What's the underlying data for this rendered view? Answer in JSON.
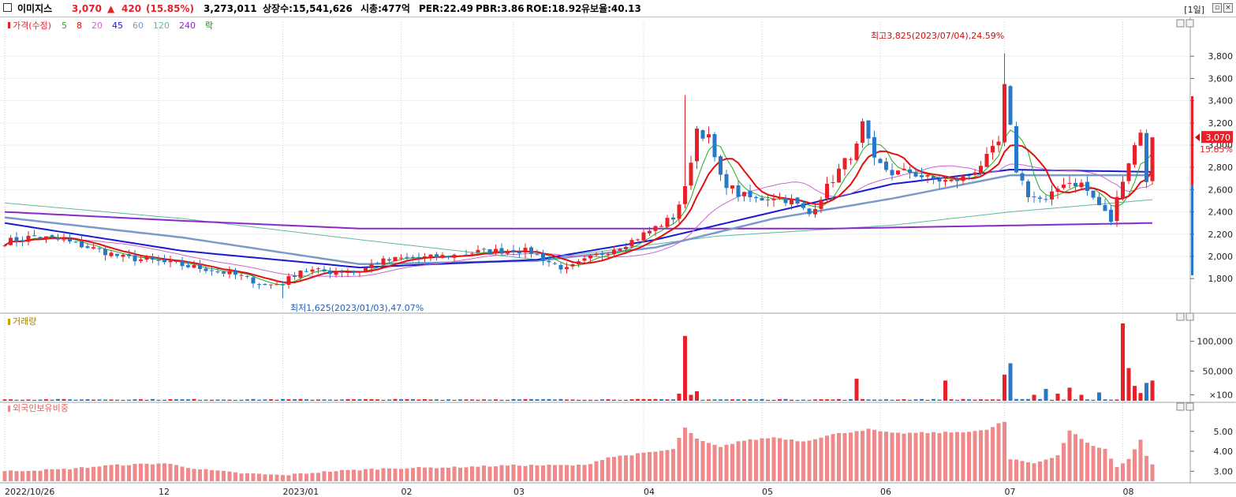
{
  "header": {
    "name": "이미지스",
    "price": "3,070",
    "change_arrow": "▲",
    "change": "420",
    "change_pct": "(15.85%)",
    "volume": "3,273,011",
    "shares": "상장수:15,541,626",
    "mcap": "시총:477억",
    "per": "PER:22.49",
    "pbr": "PBR:3.86",
    "roe": "ROE:18.92",
    "float": "유보율:40.13",
    "period": "[1일]"
  },
  "colors": {
    "up": "#e8202a",
    "down": "#2878c8",
    "ma5": "#1fae1f",
    "ma8": "#e01010",
    "ma20": "#cc66cc",
    "ma45": "#1a1ad0",
    "ma60": "#7a9ac8",
    "ma120": "#5fb8a0",
    "ma240": "#8a2ac8",
    "foreign": "#f08a8a"
  },
  "chart_data": {
    "type": "candlestick",
    "price_panel": {
      "legend": [
        {
          "label": "가격(수정)",
          "color": "#e8202a"
        },
        {
          "label": "5",
          "color": "#1fae1f"
        },
        {
          "label": "8",
          "color": "#e01010"
        },
        {
          "label": "20",
          "color": "#cc66cc"
        },
        {
          "label": "45",
          "color": "#1a1ad0"
        },
        {
          "label": "60",
          "color": "#7a9ac8"
        },
        {
          "label": "120",
          "color": "#5fb8a0"
        },
        {
          "label": "240",
          "color": "#8a2ac8"
        },
        {
          "label": "락",
          "color": "#0a8a0a"
        }
      ],
      "y_ticks": [
        "3,800",
        "3,600",
        "3,400",
        "3,200",
        "3,000",
        "2,800",
        "2,600",
        "2,400",
        "2,200",
        "2,000",
        "1,800"
      ],
      "y_tick_values": [
        3800,
        3600,
        3400,
        3200,
        3000,
        2800,
        2600,
        2400,
        2200,
        2000,
        1800
      ],
      "ylim": [
        1560,
        4050
      ],
      "high_annotation": "최고3,825(2023/07/04),24.59%",
      "low_annotation": "최저1,625(2023/01/03),47.07%",
      "last_price_label": "3,070",
      "last_pct_label": "15.85%",
      "last_price": 3070
    },
    "volume_panel": {
      "legend": "거래량",
      "y_ticks": [
        "100,000",
        "50,000",
        "×100"
      ],
      "y_tick_values": [
        100000,
        50000,
        10000
      ],
      "ylim": [
        0,
        130000
      ]
    },
    "foreign_panel": {
      "legend": "외국인보유비중",
      "y_ticks": [
        "5.00",
        "4.00",
        "3.00"
      ],
      "y_tick_values": [
        5.0,
        4.0,
        3.0
      ],
      "ylim": [
        2.5,
        5.9
      ]
    },
    "x_ticks": [
      {
        "label": "2022/10/26",
        "day": 0
      },
      {
        "label": "12",
        "day": 26
      },
      {
        "label": "2023/01",
        "day": 47
      },
      {
        "label": "02",
        "day": 67
      },
      {
        "label": "03",
        "day": 86
      },
      {
        "label": "04",
        "day": 108
      },
      {
        "label": "05",
        "day": 128
      },
      {
        "label": "06",
        "day": 148
      },
      {
        "label": "07",
        "day": 169
      },
      {
        "label": "08",
        "day": 189
      }
    ],
    "total_days": 194,
    "anchors": [
      [
        0,
        2130
      ],
      [
        5,
        2180
      ],
      [
        10,
        2140
      ],
      [
        15,
        2070
      ],
      [
        20,
        1990
      ],
      [
        25,
        1960
      ],
      [
        30,
        1920
      ],
      [
        35,
        1880
      ],
      [
        40,
        1820
      ],
      [
        44,
        1740
      ],
      [
        47,
        1760
      ],
      [
        50,
        1880
      ],
      [
        55,
        1860
      ],
      [
        60,
        1870
      ],
      [
        63,
        1950
      ],
      [
        67,
        1980
      ],
      [
        72,
        1990
      ],
      [
        76,
        2010
      ],
      [
        80,
        2040
      ],
      [
        84,
        2050
      ],
      [
        86,
        2060
      ],
      [
        89,
        2040
      ],
      [
        92,
        1950
      ],
      [
        95,
        1880
      ],
      [
        98,
        1960
      ],
      [
        102,
        2050
      ],
      [
        106,
        2140
      ],
      [
        110,
        2260
      ],
      [
        113,
        2350
      ],
      [
        115,
        2600
      ],
      [
        117,
        3150
      ],
      [
        119,
        3060
      ],
      [
        121,
        2700
      ],
      [
        124,
        2560
      ],
      [
        127,
        2510
      ],
      [
        130,
        2540
      ],
      [
        133,
        2500
      ],
      [
        136,
        2380
      ],
      [
        139,
        2620
      ],
      [
        142,
        2850
      ],
      [
        144,
        2980
      ],
      [
        145,
        3180
      ],
      [
        147,
        2850
      ],
      [
        150,
        2750
      ],
      [
        153,
        2760
      ],
      [
        156,
        2700
      ],
      [
        160,
        2670
      ],
      [
        163,
        2730
      ],
      [
        166,
        2880
      ],
      [
        168,
        3020
      ],
      [
        169,
        3510
      ],
      [
        171,
        2780
      ],
      [
        173,
        2560
      ],
      [
        176,
        2490
      ],
      [
        179,
        2670
      ],
      [
        182,
        2650
      ],
      [
        185,
        2460
      ],
      [
        187,
        2320
      ],
      [
        189,
        2710
      ],
      [
        192,
        3140
      ],
      [
        193,
        2650
      ],
      [
        194,
        3070
      ]
    ],
    "ma_anchors": {
      "ma240": [
        [
          0,
          2400
        ],
        [
          30,
          2320
        ],
        [
          60,
          2250
        ],
        [
          100,
          2250
        ],
        [
          140,
          2250
        ],
        [
          194,
          2300
        ]
      ],
      "ma120": [
        [
          0,
          2480
        ],
        [
          30,
          2340
        ],
        [
          60,
          2150
        ],
        [
          90,
          1970
        ],
        [
          120,
          2180
        ],
        [
          150,
          2280
        ],
        [
          170,
          2400
        ],
        [
          194,
          2510
        ]
      ],
      "ma60": [
        [
          0,
          2350
        ],
        [
          30,
          2170
        ],
        [
          60,
          1930
        ],
        [
          90,
          1960
        ],
        [
          110,
          2080
        ],
        [
          130,
          2340
        ],
        [
          150,
          2520
        ],
        [
          170,
          2730
        ],
        [
          194,
          2730
        ]
      ],
      "ma45": [
        [
          0,
          2300
        ],
        [
          30,
          2050
        ],
        [
          60,
          1900
        ],
        [
          90,
          1970
        ],
        [
          110,
          2150
        ],
        [
          130,
          2400
        ],
        [
          150,
          2650
        ],
        [
          170,
          2780
        ],
        [
          194,
          2760
        ]
      ]
    },
    "volume_spikes": [
      [
        114,
        12
      ],
      [
        115,
        109
      ],
      [
        116,
        10
      ],
      [
        117,
        16
      ],
      [
        144,
        37
      ],
      [
        159,
        34
      ],
      [
        169,
        44
      ],
      [
        170,
        63
      ],
      [
        174,
        10
      ],
      [
        176,
        20
      ],
      [
        178,
        12
      ],
      [
        180,
        22
      ],
      [
        182,
        10
      ],
      [
        185,
        14
      ],
      [
        189,
        130
      ],
      [
        190,
        55
      ],
      [
        191,
        25
      ],
      [
        192,
        13
      ],
      [
        193,
        30
      ],
      [
        194,
        34
      ]
    ],
    "foreign_anchors": [
      [
        0,
        3.0
      ],
      [
        10,
        3.1
      ],
      [
        18,
        3.3
      ],
      [
        27,
        3.4
      ],
      [
        33,
        3.1
      ],
      [
        40,
        2.9
      ],
      [
        47,
        2.8
      ],
      [
        55,
        3.0
      ],
      [
        65,
        3.15
      ],
      [
        76,
        3.2
      ],
      [
        86,
        3.3
      ],
      [
        98,
        3.3
      ],
      [
        102,
        3.7
      ],
      [
        108,
        3.9
      ],
      [
        113,
        4.1
      ],
      [
        115,
        5.2
      ],
      [
        117,
        4.6
      ],
      [
        121,
        4.2
      ],
      [
        124,
        4.5
      ],
      [
        130,
        4.7
      ],
      [
        135,
        4.5
      ],
      [
        140,
        4.85
      ],
      [
        146,
        5.1
      ],
      [
        150,
        4.9
      ],
      [
        160,
        4.95
      ],
      [
        166,
        5.05
      ],
      [
        168,
        5.4
      ],
      [
        169,
        5.45
      ],
      [
        170,
        3.6
      ],
      [
        174,
        3.4
      ],
      [
        178,
        3.8
      ],
      [
        180,
        5.05
      ],
      [
        183,
        4.4
      ],
      [
        186,
        4.1
      ],
      [
        188,
        3.2
      ],
      [
        190,
        3.6
      ],
      [
        192,
        4.6
      ],
      [
        193,
        3.8
      ],
      [
        194,
        3.35
      ]
    ]
  }
}
